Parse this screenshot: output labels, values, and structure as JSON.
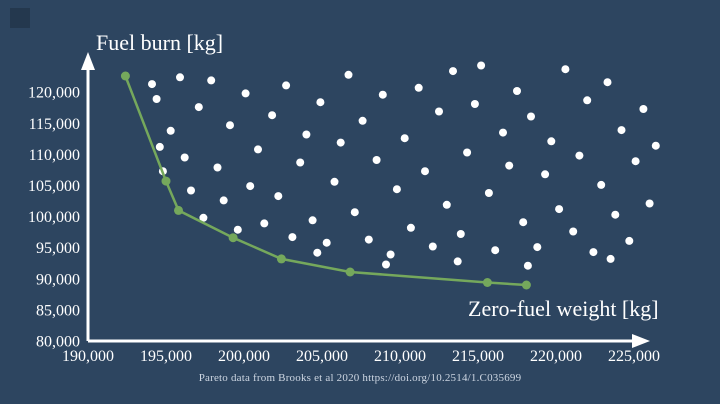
{
  "page": {
    "footer": "Pareto data from Brooks et al 2020 https://doi.org/10.2514/1.C035699"
  },
  "chart_data": {
    "type": "scatter",
    "title": "",
    "xlabel": "Zero-fuel weight [kg]",
    "ylabel": "Fuel burn [kg]",
    "xlim": [
      190000,
      228000
    ],
    "ylim": [
      80000,
      126000
    ],
    "grid": false,
    "legend": "none",
    "x_ticks": [
      190000,
      195000,
      200000,
      205000,
      210000,
      215000,
      220000,
      225000
    ],
    "x_tick_labels": [
      "190,000",
      "195,000",
      "200,000",
      "205,000",
      "210,000",
      "215,000",
      "220,000",
      "225,000"
    ],
    "y_ticks": [
      80000,
      85000,
      90000,
      95000,
      100000,
      105000,
      110000,
      115000,
      120000
    ],
    "y_tick_labels": [
      "80,000",
      "85,000",
      "90,000",
      "95,000",
      "100,000",
      "105,000",
      "110,000",
      "115,000",
      "120,000"
    ],
    "colors": {
      "background": "#2d4560",
      "axis": "#ffffff",
      "scatter": "#ffffff",
      "pareto": "#75a85c"
    },
    "series": [
      {
        "name": "sampled-designs",
        "type": "scatter",
        "color": "#ffffff",
        "points": [
          [
            194600,
            111200
          ],
          [
            194100,
            121300
          ],
          [
            194400,
            118900
          ],
          [
            194800,
            107300
          ],
          [
            195300,
            113800
          ],
          [
            195900,
            122400
          ],
          [
            196200,
            109500
          ],
          [
            196600,
            104200
          ],
          [
            197100,
            117600
          ],
          [
            197400,
            99800
          ],
          [
            197900,
            121900
          ],
          [
            198300,
            107900
          ],
          [
            198700,
            102600
          ],
          [
            199100,
            114700
          ],
          [
            199600,
            97900
          ],
          [
            200100,
            119800
          ],
          [
            200400,
            104900
          ],
          [
            200900,
            110800
          ],
          [
            201300,
            98900
          ],
          [
            201800,
            116300
          ],
          [
            202200,
            103300
          ],
          [
            202700,
            121100
          ],
          [
            203100,
            96700
          ],
          [
            203600,
            108700
          ],
          [
            204000,
            113200
          ],
          [
            204400,
            99400
          ],
          [
            204900,
            118400
          ],
          [
            205300,
            95800
          ],
          [
            205800,
            105600
          ],
          [
            206200,
            111900
          ],
          [
            206700,
            122800
          ],
          [
            207100,
            100700
          ],
          [
            207600,
            115400
          ],
          [
            208000,
            96300
          ],
          [
            208500,
            109100
          ],
          [
            208900,
            119600
          ],
          [
            209400,
            93900
          ],
          [
            209800,
            104400
          ],
          [
            210300,
            112600
          ],
          [
            210700,
            98200
          ],
          [
            211200,
            120700
          ],
          [
            211600,
            107300
          ],
          [
            212100,
            95200
          ],
          [
            212500,
            116900
          ],
          [
            213000,
            101900
          ],
          [
            213400,
            123400
          ],
          [
            213900,
            97200
          ],
          [
            214300,
            110300
          ],
          [
            214800,
            118100
          ],
          [
            215200,
            124300
          ],
          [
            215700,
            103800
          ],
          [
            216100,
            94600
          ],
          [
            216600,
            113500
          ],
          [
            217000,
            108200
          ],
          [
            217500,
            120200
          ],
          [
            217900,
            99100
          ],
          [
            218400,
            116100
          ],
          [
            218800,
            95100
          ],
          [
            219300,
            106800
          ],
          [
            219700,
            112100
          ],
          [
            220200,
            101200
          ],
          [
            220600,
            123700
          ],
          [
            221100,
            97600
          ],
          [
            221500,
            109800
          ],
          [
            222000,
            118700
          ],
          [
            222400,
            94300
          ],
          [
            222900,
            105100
          ],
          [
            223300,
            121600
          ],
          [
            223800,
            100300
          ],
          [
            224200,
            113900
          ],
          [
            224700,
            96100
          ],
          [
            225100,
            108900
          ],
          [
            225600,
            117300
          ],
          [
            226000,
            102100
          ],
          [
            226400,
            111400
          ],
          [
            204700,
            94200
          ],
          [
            209100,
            92300
          ],
          [
            213700,
            92800
          ],
          [
            218200,
            92100
          ],
          [
            223500,
            93200
          ]
        ]
      },
      {
        "name": "pareto-front",
        "type": "line-markers",
        "color": "#75a85c",
        "points": [
          [
            192400,
            122600
          ],
          [
            195000,
            105700
          ],
          [
            195800,
            101000
          ],
          [
            199300,
            96600
          ],
          [
            202400,
            93200
          ],
          [
            206800,
            91100
          ],
          [
            215600,
            89400
          ],
          [
            218100,
            89000
          ]
        ]
      }
    ]
  }
}
